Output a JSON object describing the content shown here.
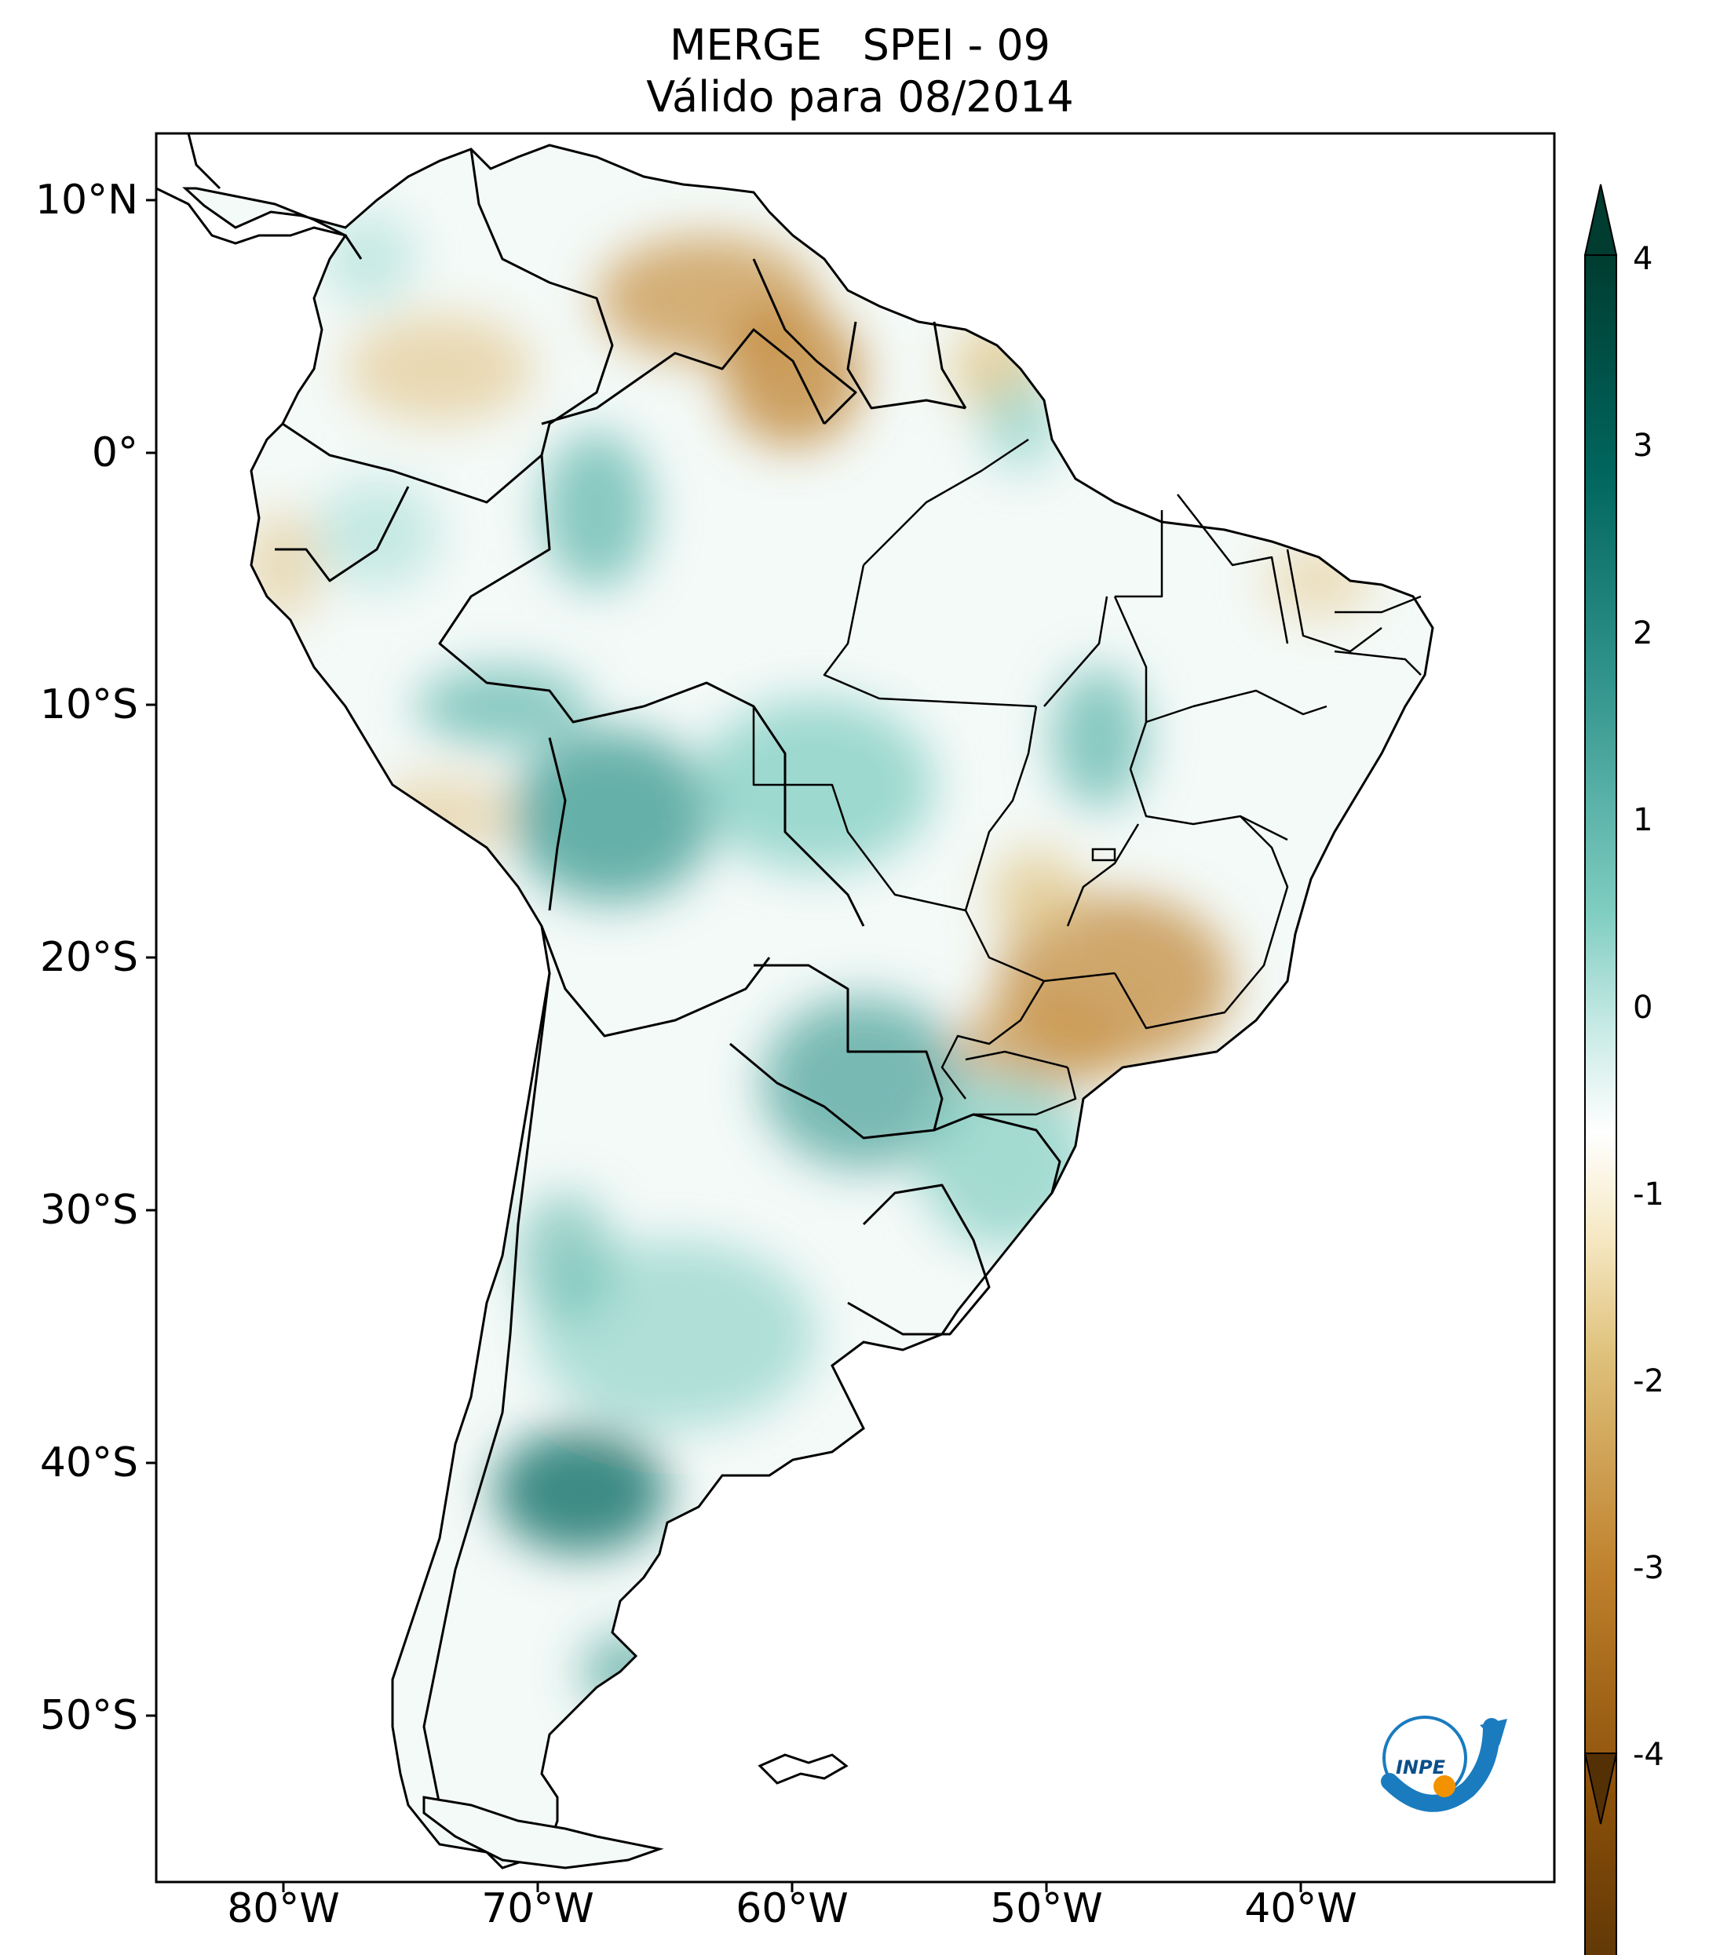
{
  "title": {
    "line1": "MERGE   SPEI - 09",
    "line2": "Válido para 08/2014"
  },
  "map": {
    "region": "South America",
    "variable": "SPEI - 09",
    "source": "MERGE",
    "lat_ticks": [
      {
        "value": 10,
        "label": "10°N"
      },
      {
        "value": 0,
        "label": "0°"
      },
      {
        "value": -10,
        "label": "10°S"
      },
      {
        "value": -20,
        "label": "20°S"
      },
      {
        "value": -30,
        "label": "30°S"
      },
      {
        "value": -40,
        "label": "40°S"
      },
      {
        "value": -50,
        "label": "50°S"
      }
    ],
    "lon_ticks": [
      {
        "value": -80,
        "label": "80°W"
      },
      {
        "value": -70,
        "label": "70°W"
      },
      {
        "value": -60,
        "label": "60°W"
      },
      {
        "value": -50,
        "label": "50°W"
      },
      {
        "value": -40,
        "label": "40°W"
      }
    ],
    "lon_range": [
      -85,
      -30
    ],
    "lat_range": [
      -56,
      13
    ]
  },
  "colorbar": {
    "range": [
      -4,
      4
    ],
    "ticks": [
      {
        "value": 4,
        "label": "4"
      },
      {
        "value": 3,
        "label": "3"
      },
      {
        "value": 2,
        "label": "2"
      },
      {
        "value": 1,
        "label": "1"
      },
      {
        "value": 0,
        "label": "0"
      },
      {
        "value": -1,
        "label": "-1"
      },
      {
        "value": -2,
        "label": "-2"
      },
      {
        "value": -3,
        "label": "-3"
      },
      {
        "value": -4,
        "label": "-4"
      }
    ],
    "colors": {
      "v4": "#003c30",
      "v3": "#01665e",
      "v2": "#35978f",
      "v1": "#c7eae5",
      "v0": "#f5f5f5",
      "vm1": "#f6e8c3",
      "vm2": "#dfc27d",
      "vm3": "#bf812d",
      "vm4": "#543005"
    }
  },
  "logo": {
    "text": "INPE",
    "primary_color": "#1a7bbf",
    "accent_color": "#f39200"
  }
}
